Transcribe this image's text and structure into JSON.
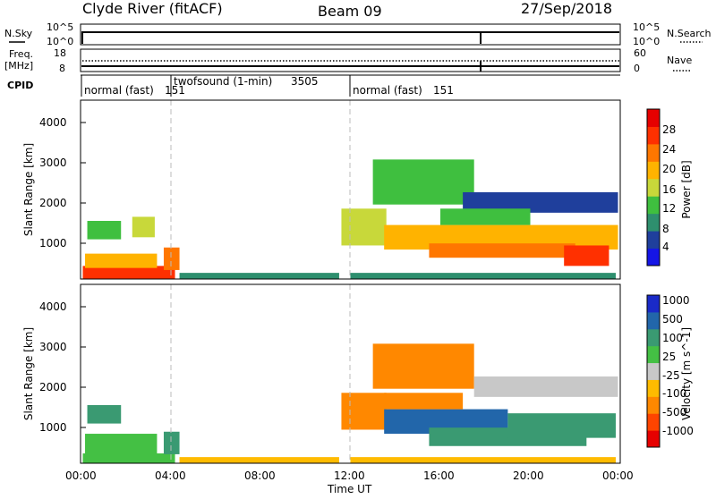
{
  "header": {
    "station": "Clyde River (fitACF)",
    "beam": "Beam 09",
    "date": "27/Sep/2018"
  },
  "top_panels": {
    "nsky": {
      "label": "N.Sky",
      "ticks": [
        "10^5",
        "10^0"
      ]
    },
    "nsearch": {
      "label": "N.Search",
      "ticks": [
        "10^5",
        "10^0"
      ]
    },
    "freq": {
      "label_line1": "Freq.",
      "label_line2": "[MHz]",
      "ticks": [
        "18",
        "8"
      ]
    },
    "nave": {
      "label": "Nave",
      "ticks": [
        "60",
        "0"
      ]
    },
    "cpid": {
      "label": "CPID",
      "segments": [
        {
          "name": "normal (fast)",
          "id": "151"
        },
        {
          "name": "twofsound (1-min)",
          "id": "3505"
        },
        {
          "name": "normal (fast)",
          "id": "151"
        }
      ]
    }
  },
  "colors": {
    "power": [
      "#1515e6",
      "#1f3f9c",
      "#2e8f6e",
      "#3fbf3f",
      "#c8d83a",
      "#ffb300",
      "#ff7700",
      "#ff3000",
      "#e60000"
    ],
    "velocity": [
      "#e60000",
      "#ff4400",
      "#ff8800",
      "#ffbb00",
      "#c8c8c8",
      "#44c044",
      "#3a9a72",
      "#2266aa",
      "#1a2ac8"
    ]
  },
  "chart_data": [
    {
      "type": "heatmap",
      "panel": "power",
      "xlabel": "Time UT",
      "ylabel": "Slant Range [km]",
      "colorbar_label": "Power [dB]",
      "colorbar_ticks": [
        "4",
        "8",
        "12",
        "16",
        "20",
        "24",
        "28"
      ],
      "x_ticks": [
        "00:00",
        "04:00",
        "08:00",
        "12:00",
        "16:00",
        "20:00",
        "00:00"
      ],
      "y_ticks": [
        "1000",
        "2000",
        "3000",
        "4000"
      ],
      "xlim_hours": [
        0,
        24
      ],
      "ylim": [
        180,
        4550
      ],
      "regions": [
        {
          "t0": 0.1,
          "t1": 4.2,
          "r0": 180,
          "r1": 500,
          "level": 7
        },
        {
          "t0": 0.2,
          "t1": 3.4,
          "r0": 450,
          "r1": 800,
          "level": 5
        },
        {
          "t0": 0.3,
          "t1": 1.8,
          "r0": 1150,
          "r1": 1600,
          "level": 3
        },
        {
          "t0": 2.3,
          "t1": 3.3,
          "r0": 1200,
          "r1": 1700,
          "level": 4
        },
        {
          "t0": 3.7,
          "t1": 4.4,
          "r0": 400,
          "r1": 950,
          "level": 6
        },
        {
          "t0": 4.4,
          "t1": 11.5,
          "r0": 180,
          "r1": 330,
          "level": 2
        },
        {
          "t0": 11.6,
          "t1": 13.6,
          "r0": 1000,
          "r1": 1900,
          "level": 4
        },
        {
          "t0": 13.0,
          "t1": 17.5,
          "r0": 2000,
          "r1": 3100,
          "level": 3
        },
        {
          "t0": 13.5,
          "t1": 23.9,
          "r0": 900,
          "r1": 1500,
          "level": 5
        },
        {
          "t0": 15.5,
          "t1": 22.0,
          "r0": 700,
          "r1": 1050,
          "level": 6
        },
        {
          "t0": 21.5,
          "t1": 23.5,
          "r0": 500,
          "r1": 1000,
          "level": 7
        },
        {
          "t0": 12.0,
          "t1": 23.8,
          "r0": 180,
          "r1": 330,
          "level": 2
        },
        {
          "t0": 17.0,
          "t1": 23.9,
          "r0": 1800,
          "r1": 2300,
          "level": 1
        },
        {
          "t0": 16.0,
          "t1": 20.0,
          "r0": 1500,
          "r1": 1900,
          "level": 3
        }
      ]
    },
    {
      "type": "heatmap",
      "panel": "velocity",
      "xlabel": "Time UT",
      "ylabel": "Slant Range [km]",
      "colorbar_label": "Velocity [m s^-1]",
      "colorbar_ticks": [
        "-1000",
        "-500",
        "-100",
        "-25",
        "25",
        "100",
        "500",
        "1000"
      ],
      "x_ticks": [
        "00:00",
        "04:00",
        "08:00",
        "12:00",
        "16:00",
        "20:00",
        "00:00"
      ],
      "y_ticks": [
        "1000",
        "2000",
        "3000",
        "4000"
      ],
      "xlim_hours": [
        0,
        24
      ],
      "ylim": [
        180,
        4550
      ],
      "regions": [
        {
          "t0": 0.1,
          "t1": 4.2,
          "r0": 180,
          "r1": 420,
          "level": 5
        },
        {
          "t0": 0.3,
          "t1": 1.8,
          "r0": 1150,
          "r1": 1600,
          "level": 6
        },
        {
          "t0": 0.2,
          "t1": 3.4,
          "r0": 400,
          "r1": 900,
          "level": 5
        },
        {
          "t0": 3.7,
          "t1": 4.4,
          "r0": 400,
          "r1": 950,
          "level": 6
        },
        {
          "t0": 4.4,
          "t1": 11.5,
          "r0": 180,
          "r1": 330,
          "level": 3
        },
        {
          "t0": 11.6,
          "t1": 13.6,
          "r0": 1000,
          "r1": 1900,
          "level": 2
        },
        {
          "t0": 13.0,
          "t1": 17.5,
          "r0": 2000,
          "r1": 3100,
          "level": 2
        },
        {
          "t0": 13.5,
          "t1": 19.0,
          "r0": 900,
          "r1": 1500,
          "level": 7
        },
        {
          "t0": 15.5,
          "t1": 22.5,
          "r0": 600,
          "r1": 1050,
          "level": 6
        },
        {
          "t0": 19.0,
          "t1": 23.8,
          "r0": 800,
          "r1": 1400,
          "level": 6
        },
        {
          "t0": 12.0,
          "t1": 23.8,
          "r0": 180,
          "r1": 330,
          "level": 3
        },
        {
          "t0": 17.5,
          "t1": 23.9,
          "r0": 1800,
          "r1": 2300,
          "level": 4
        },
        {
          "t0": 13.5,
          "t1": 17.0,
          "r0": 1500,
          "r1": 1900,
          "level": 2
        }
      ]
    }
  ]
}
